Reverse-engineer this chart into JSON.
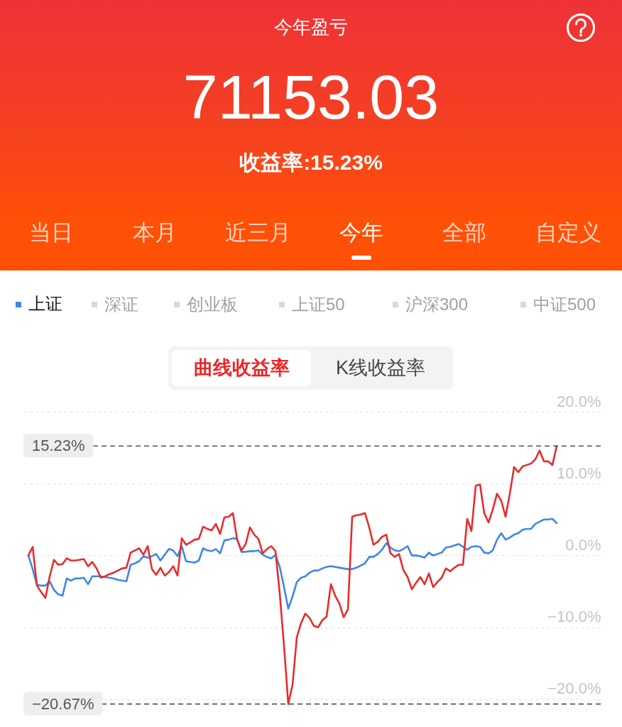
{
  "chart_data": [
    {
      "type": "other",
      "title": "今年盈亏",
      "subtitle": "71153.03",
      "annotations": [
        "收益率:15.23%",
        "当日",
        "本月",
        "近三月",
        "今年",
        "全部",
        "自定义"
      ]
    },
    {
      "type": "line",
      "categories": [
        null,
        null,
        null,
        null,
        null,
        null,
        null,
        null,
        null,
        null,
        null,
        null,
        null,
        null,
        null,
        null,
        null,
        null,
        null,
        null,
        null,
        null,
        null,
        null,
        null,
        null,
        null,
        null,
        null,
        null,
        null,
        null,
        null,
        null,
        null,
        null,
        null,
        null,
        null,
        null,
        null,
        null,
        null,
        null,
        null,
        null,
        null,
        null,
        null,
        null,
        null,
        null,
        null,
        null,
        null,
        null,
        null,
        null,
        null,
        null,
        null,
        null,
        null,
        null,
        null,
        null,
        null,
        null,
        null,
        null,
        null,
        null,
        null,
        null,
        null,
        null,
        null,
        null,
        null,
        null,
        null,
        null,
        null,
        null,
        null,
        null,
        null,
        null,
        null,
        null,
        null,
        null,
        null,
        null,
        null,
        null,
        null,
        null,
        null,
        null,
        null,
        null,
        null,
        null,
        null,
        null,
        null,
        null,
        null,
        null,
        null,
        null,
        null,
        null,
        null,
        null,
        null,
        null,
        null,
        null,
        null,
        null,
        null,
        null,
        null
      ],
      "ylim": [
        -20.67,
        20
      ],
      "yticks": [
        {
          "value": 20,
          "label": "20.0%"
        },
        {
          "value": 10,
          "label": "10.0%"
        },
        {
          "value": 0,
          "label": "0.0%"
        },
        {
          "value": -10,
          "label": "−10.0%"
        },
        {
          "value": -20,
          "label": "−20.0%"
        }
      ],
      "grid": "y",
      "legend": "top left",
      "series": [
        {
          "name": "上证",
          "color": "#3f87e6",
          "values": [
            0,
            -1.9,
            -4.1,
            -4.2,
            -4.2,
            -3.6,
            -4.8,
            -5.4,
            -5.6,
            -3.2,
            -3.5,
            -3.2,
            -3.2,
            -3.1,
            -4.0,
            -2.9,
            -2.9,
            -2.9,
            -3.0,
            -3.1,
            -3.2,
            -3.4,
            -3.5,
            -3.6,
            -1.3,
            -1.1,
            -0.8,
            -0.1,
            -0.3,
            -0.1,
            0.2,
            -0.7,
            0.1,
            0.9,
            0.7,
            -0.1,
            1.3,
            -0.8,
            -0.9,
            -1.0,
            -0.7,
            1.0,
            0.7,
            0.6,
            0.9,
            0.3,
            2.1,
            2.2,
            2.4,
            2.3,
            0.5,
            0.5,
            0.6,
            0.6,
            0.7,
            0.1,
            -0.2,
            -0.4,
            0.1,
            -1.6,
            -4.4,
            -7.4,
            -5.7,
            -3.7,
            -3.1,
            -2.9,
            -2.4,
            -2.1,
            -2.1,
            -1.8,
            -1.6,
            -1.5,
            -1.6,
            -1.7,
            -1.8,
            -1.9,
            -1.9,
            -1.7,
            -1.4,
            -1.1,
            -0.2,
            -0.2,
            0.2,
            0.8,
            1.7,
            1.1,
            0.7,
            0.6,
            0.9,
            1.3,
            0.0,
            0.0,
            -0.1,
            -0.3,
            0.4,
            0.0,
            0.2,
            0.4,
            1.1,
            1.2,
            1.4,
            1.6,
            1.2,
            0.8,
            1.2,
            1.3,
            1.2,
            0.4,
            0.3,
            0.7,
            2.2,
            3.1,
            2.2,
            2.5,
            2.9,
            3.1,
            3.6,
            3.7,
            3.7,
            4.4,
            4.7,
            5.0,
            5.0,
            5.1,
            4.5
          ]
        },
        {
          "color": "#e52d2d",
          "values": [
            0,
            1.2,
            -4.2,
            -5.1,
            -5.9,
            -2.9,
            -0.6,
            -1.3,
            -1.2,
            -0.4,
            -0.7,
            -0.7,
            -0.6,
            -0.5,
            -1.5,
            -0.9,
            -1.8,
            -3.1,
            -2.9,
            -2.6,
            -2.4,
            -2.1,
            -1.8,
            -1.7,
            0.4,
            0.7,
            1.0,
            0.1,
            1.3,
            -1.9,
            -2.7,
            -1.7,
            -2.8,
            -2.3,
            -1.5,
            -2.8,
            2.4,
            1.5,
            1.8,
            2.2,
            2.3,
            4.0,
            3.7,
            3.5,
            4.4,
            3.0,
            5.3,
            5.4,
            5.9,
            2.2,
            0.7,
            1.6,
            3.9,
            2.9,
            2.3,
            0.3,
            0.9,
            1.3,
            0.6,
            -5.3,
            -12.6,
            -20.67,
            -18.0,
            -11.4,
            -9.4,
            -8.1,
            -8.7,
            -9.8,
            -10.0,
            -9.0,
            -8.5,
            -4.0,
            -5.6,
            -6.7,
            -8.6,
            -7.5,
            5.4,
            5.6,
            5.7,
            5.9,
            3.9,
            1.5,
            1.9,
            2.6,
            2.9,
            0.3,
            -0.2,
            0.2,
            -2.0,
            -3.0,
            -4.7,
            -3.8,
            -3.0,
            -4.0,
            -2.5,
            -4.4,
            -3.7,
            -3.1,
            -1.8,
            -2.2,
            -1.7,
            -1.3,
            -1.3,
            5.1,
            3.4,
            9.7,
            9.9,
            5.9,
            4.6,
            6.4,
            8.6,
            7.6,
            5.4,
            8.6,
            12.3,
            11.6,
            12.4,
            12.6,
            12.8,
            13.4,
            14.6,
            13.1,
            13.1,
            12.6,
            15.23
          ]
        }
      ],
      "ref_lines": [
        {
          "axis": "y",
          "value": 15.23,
          "label": "15.23%",
          "color": "#555555",
          "line_style": "dashed"
        },
        {
          "axis": "y",
          "value": -20.67,
          "label": "−20.67%",
          "color": "#555555",
          "line_style": "dashed"
        }
      ],
      "annotations": [
        "深证",
        "创业板",
        "上证50",
        "沪深300",
        "中证500",
        "曲线收益率",
        "K线收益率"
      ]
    }
  ]
}
